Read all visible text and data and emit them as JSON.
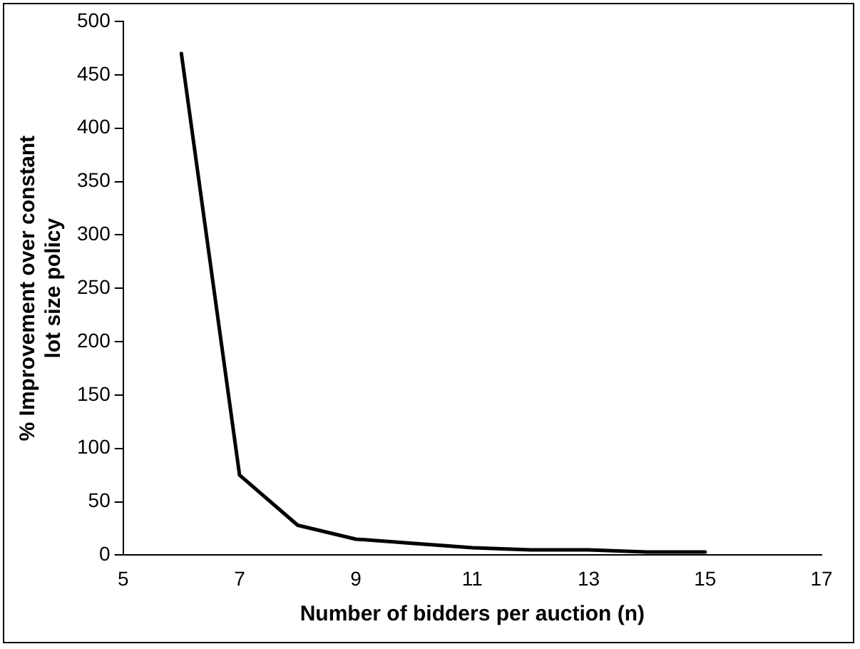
{
  "chart_data": {
    "type": "line",
    "xlabel": "Number of bidders per auction (n)",
    "ylabel": "% Improvement over constant\nlot size policy",
    "x": [
      6,
      7,
      8,
      9,
      10,
      11,
      12,
      13,
      14,
      15
    ],
    "series": [
      {
        "color": "#000000",
        "values": [
          470,
          75,
          28,
          15,
          11,
          7,
          5,
          5,
          3,
          3
        ]
      }
    ],
    "xlim": [
      5,
      17
    ],
    "xticks": [
      5,
      7,
      9,
      11,
      13,
      15,
      17
    ],
    "ylim": [
      0,
      500
    ],
    "yticks": [
      0,
      50,
      100,
      150,
      200,
      250,
      300,
      350,
      400,
      450,
      500
    ],
    "grid": false,
    "legend": false,
    "marker": "none",
    "line_style": "solid"
  }
}
